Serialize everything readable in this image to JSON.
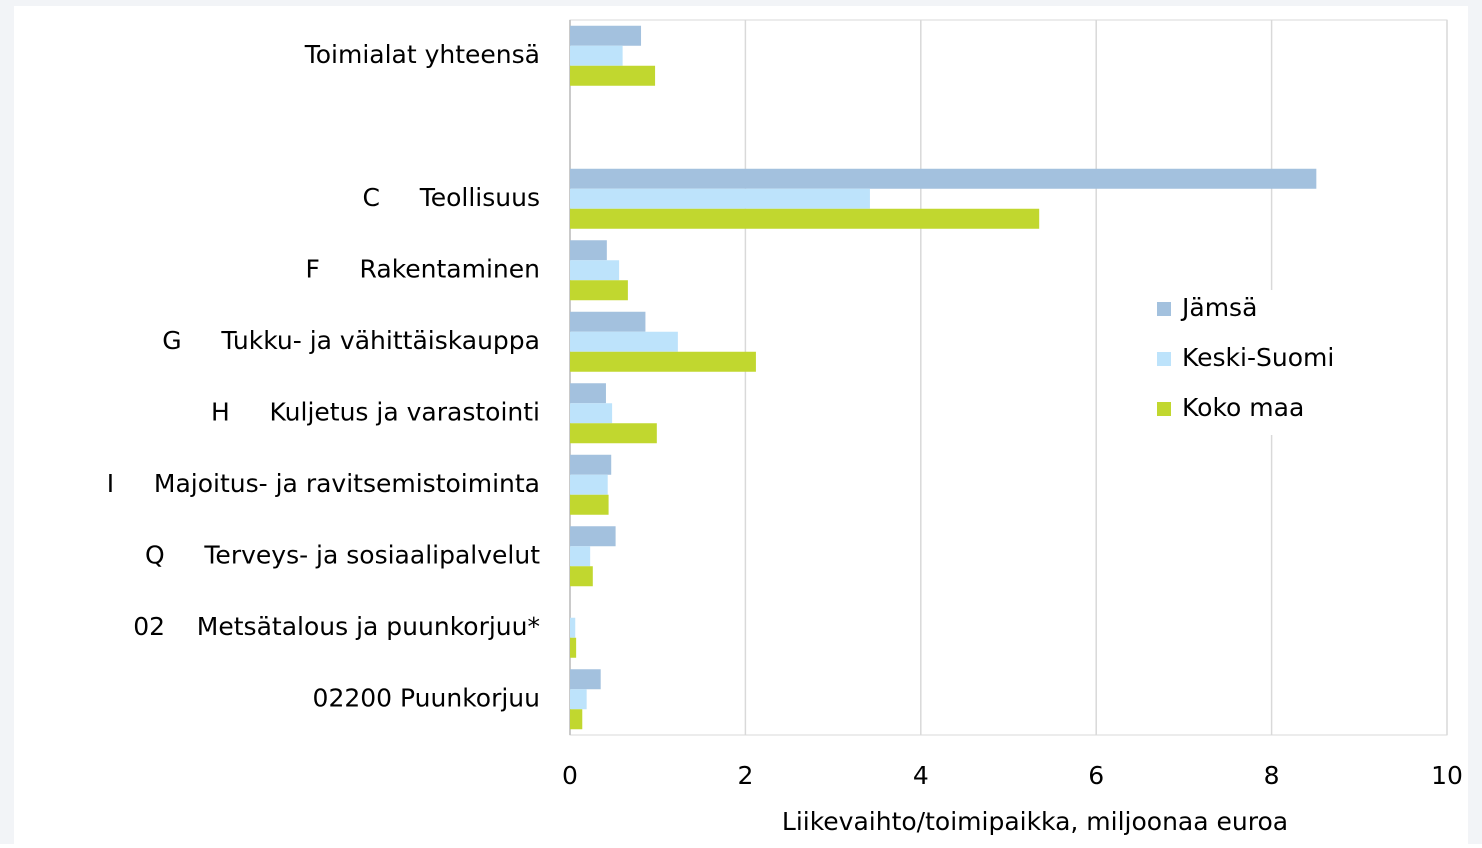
{
  "chart_data": {
    "type": "barh",
    "categories": [
      "Toimialat yhteensä",
      null,
      "C     Teollisuus",
      "F     Rakentaminen",
      "G     Tukku- ja vähittäiskauppa",
      "H     Kuljetus ja varastointi",
      "I     Majoitus- ja ravitsemistoiminta",
      "Q     Terveys- ja sosiaalipalvelut",
      "02    Metsätalous ja puunkorjuu*",
      "02200 Puunkorjuu"
    ],
    "series": [
      {
        "name": "Jämsä",
        "color": "#a3c1de",
        "values": [
          0.81,
          null,
          8.51,
          0.42,
          0.86,
          0.41,
          0.47,
          0.52,
          0,
          0.35
        ]
      },
      {
        "name": "Keski-Suomi",
        "color": "#bde3fb",
        "values": [
          0.6,
          null,
          3.42,
          0.56,
          1.23,
          0.48,
          0.43,
          0.23,
          0.06,
          0.19
        ]
      },
      {
        "name": "Koko maa",
        "color": "#c1d72f",
        "values": [
          0.97,
          null,
          5.35,
          0.66,
          2.12,
          0.99,
          0.44,
          0.26,
          0.07,
          0.14
        ]
      }
    ],
    "xlim": [
      0,
      10
    ],
    "xticks": [
      0,
      2,
      4,
      6,
      8,
      10
    ],
    "xlabel": "Liikevaihto/toimipaikka, miljoonaa euroa",
    "grid": true,
    "legend": "right"
  }
}
